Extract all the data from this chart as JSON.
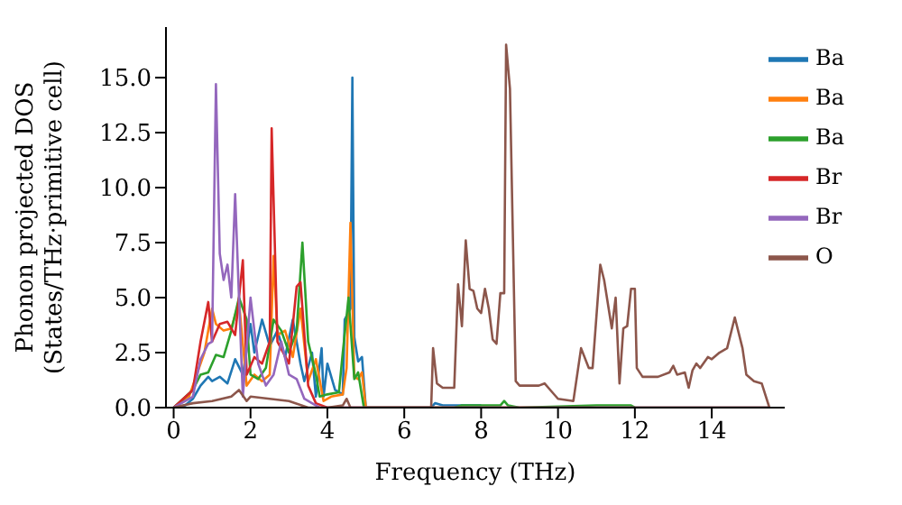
{
  "chart_data": {
    "type": "line",
    "xlabel": "Frequency (THz)",
    "ylabel": "Phonon projected DOS\n(States/THz·primitive cell)",
    "xlim": [
      -0.2,
      15.9
    ],
    "xticks": [
      0,
      2,
      4,
      6,
      8,
      10,
      12,
      14
    ],
    "ylim": [
      0,
      17.3
    ],
    "yticks": [
      {
        "value": 0,
        "label": "0.0"
      },
      {
        "value": 2.5,
        "label": "2.5"
      },
      {
        "value": 5,
        "label": "5.0"
      },
      {
        "value": 7.5,
        "label": "7.5"
      },
      {
        "value": 10,
        "label": "10.0"
      },
      {
        "value": 12.5,
        "label": "12.5"
      },
      {
        "value": 15,
        "label": "15.0"
      }
    ],
    "legend": "top right",
    "grid": false,
    "marker": "none",
    "line_style": "solid",
    "series": [
      {
        "name": "Ba",
        "color": "#1f77b4",
        "x": [
          0,
          0.3,
          0.5,
          0.7,
          0.9,
          1.0,
          1.2,
          1.4,
          1.6,
          1.8,
          2.0,
          2.1,
          2.3,
          2.5,
          2.7,
          2.9,
          3.1,
          3.3,
          3.4,
          3.6,
          3.7,
          3.85,
          3.9,
          4.0,
          4.2,
          4.4,
          4.45,
          4.6,
          4.65,
          4.7,
          4.8,
          4.9,
          5.0,
          6.7,
          6.8,
          7.0,
          8.0
        ],
        "values": [
          0,
          0.1,
          0.4,
          1.0,
          1.4,
          1.2,
          1.4,
          1.1,
          2.2,
          1.5,
          3.8,
          2.5,
          4.0,
          2.8,
          3.5,
          2.3,
          4.0,
          2.0,
          1.2,
          2.5,
          0.5,
          2.7,
          0.5,
          2.0,
          0.8,
          0.6,
          4.0,
          4.5,
          15.0,
          3.2,
          2.1,
          2.3,
          0,
          0,
          0.2,
          0.1,
          0.1
        ]
      },
      {
        "name": "Ba",
        "color": "#ff7f0e",
        "x": [
          0,
          0.4,
          0.6,
          0.8,
          1.0,
          1.1,
          1.3,
          1.5,
          1.7,
          1.9,
          2.1,
          2.3,
          2.5,
          2.6,
          2.7,
          2.9,
          3.1,
          3.3,
          3.5,
          3.7,
          3.9,
          4.1,
          4.4,
          4.5,
          4.6,
          4.7,
          4.8,
          4.9,
          5.0,
          10.5
        ],
        "values": [
          0,
          0.5,
          1.5,
          2.5,
          4.5,
          3.8,
          3.5,
          3.6,
          4.8,
          1.0,
          1.5,
          1.2,
          1.5,
          6.9,
          3.3,
          3.5,
          2.3,
          4.5,
          1.2,
          2.2,
          0.3,
          0.5,
          0.6,
          1.8,
          8.4,
          1.4,
          1.3,
          1.6,
          0,
          0
        ]
      },
      {
        "name": "Ba",
        "color": "#2ca02c",
        "x": [
          0,
          0.5,
          0.7,
          0.9,
          1.1,
          1.3,
          1.5,
          1.7,
          1.9,
          2.0,
          2.2,
          2.4,
          2.6,
          2.8,
          3.0,
          3.2,
          3.35,
          3.5,
          3.7,
          3.8,
          4.0,
          4.3,
          4.4,
          4.55,
          4.7,
          4.8,
          4.95,
          7.3,
          7.5,
          8.5,
          8.6,
          8.7,
          9.0,
          11.0,
          11.9,
          12.0,
          15.5
        ],
        "values": [
          0,
          0.8,
          1.5,
          1.6,
          2.4,
          2.3,
          3.5,
          5.0,
          4.0,
          1.5,
          1.3,
          1.8,
          4.0,
          3.5,
          2.5,
          3.5,
          7.5,
          3.0,
          1.5,
          0.5,
          0.6,
          0.7,
          2.5,
          5.0,
          1.3,
          1.6,
          0,
          0,
          0.1,
          0.1,
          0.3,
          0.1,
          0,
          0.1,
          0.1,
          0,
          0
        ]
      },
      {
        "name": "Br",
        "color": "#d62728",
        "x": [
          0,
          0.5,
          0.7,
          0.9,
          1.0,
          1.2,
          1.4,
          1.6,
          1.8,
          1.9,
          2.1,
          2.3,
          2.5,
          2.55,
          2.7,
          3.0,
          3.2,
          3.3,
          3.5,
          3.7,
          4.0,
          15.5
        ],
        "values": [
          0,
          0.8,
          3.0,
          4.8,
          3.0,
          3.8,
          3.9,
          3.3,
          6.7,
          1.5,
          2.3,
          2.0,
          3.0,
          12.7,
          3.0,
          2.0,
          5.5,
          5.7,
          1.0,
          0.2,
          0,
          0
        ]
      },
      {
        "name": "Br",
        "color": "#9467bd",
        "x": [
          0,
          0.5,
          0.7,
          0.9,
          1.0,
          1.1,
          1.2,
          1.3,
          1.4,
          1.5,
          1.6,
          1.7,
          1.8,
          2.0,
          2.1,
          2.2,
          2.4,
          2.6,
          2.8,
          3.0,
          3.2,
          3.4,
          3.6,
          3.8,
          15.5
        ],
        "values": [
          0,
          0.5,
          2.2,
          2.9,
          3.0,
          14.7,
          7.0,
          5.8,
          6.5,
          5.0,
          9.7,
          5.0,
          0.5,
          5.0,
          3.5,
          2.0,
          1.0,
          1.5,
          3.0,
          1.5,
          1.3,
          0.4,
          0.2,
          0,
          0
        ]
      },
      {
        "name": "O",
        "color": "#8c564b",
        "x": [
          0,
          0.5,
          1.0,
          1.5,
          1.7,
          1.9,
          2.0,
          2.5,
          3.0,
          3.5,
          4.0,
          4.4,
          4.5,
          4.6,
          5.0,
          6.7,
          6.75,
          6.85,
          7.0,
          7.3,
          7.4,
          7.5,
          7.6,
          7.7,
          7.8,
          7.9,
          8.0,
          8.1,
          8.2,
          8.3,
          8.4,
          8.5,
          8.6,
          8.65,
          8.75,
          8.9,
          9.0,
          9.5,
          9.65,
          9.8,
          10.0,
          10.4,
          10.6,
          10.8,
          10.9,
          11.1,
          11.2,
          11.4,
          11.5,
          11.6,
          11.7,
          11.8,
          11.9,
          12.0,
          12.05,
          12.2,
          12.6,
          12.9,
          13.0,
          13.1,
          13.3,
          13.4,
          13.5,
          13.6,
          13.7,
          13.9,
          14.0,
          14.2,
          14.4,
          14.6,
          14.8,
          14.9,
          15.1,
          15.3,
          15.5
        ],
        "values": [
          0,
          0.2,
          0.3,
          0.5,
          0.8,
          0.3,
          0.5,
          0.4,
          0.3,
          0,
          0,
          0.1,
          0.4,
          0,
          0,
          0,
          2.7,
          1.1,
          0.9,
          0.9,
          5.6,
          3.7,
          7.6,
          5.4,
          5.3,
          4.5,
          4.3,
          5.4,
          4.5,
          3.1,
          2.9,
          5.2,
          5.2,
          16.5,
          14.5,
          1.2,
          1.0,
          1.0,
          1.1,
          0.8,
          0.4,
          0.3,
          2.7,
          1.8,
          1.8,
          6.5,
          5.8,
          3.6,
          5.0,
          1.1,
          3.6,
          3.7,
          5.4,
          5.4,
          1.8,
          1.4,
          1.4,
          1.6,
          1.9,
          1.5,
          1.6,
          0.9,
          1.7,
          2.0,
          1.8,
          2.3,
          2.2,
          2.5,
          2.7,
          4.1,
          2.7,
          1.5,
          1.2,
          1.1,
          0
        ]
      }
    ]
  }
}
